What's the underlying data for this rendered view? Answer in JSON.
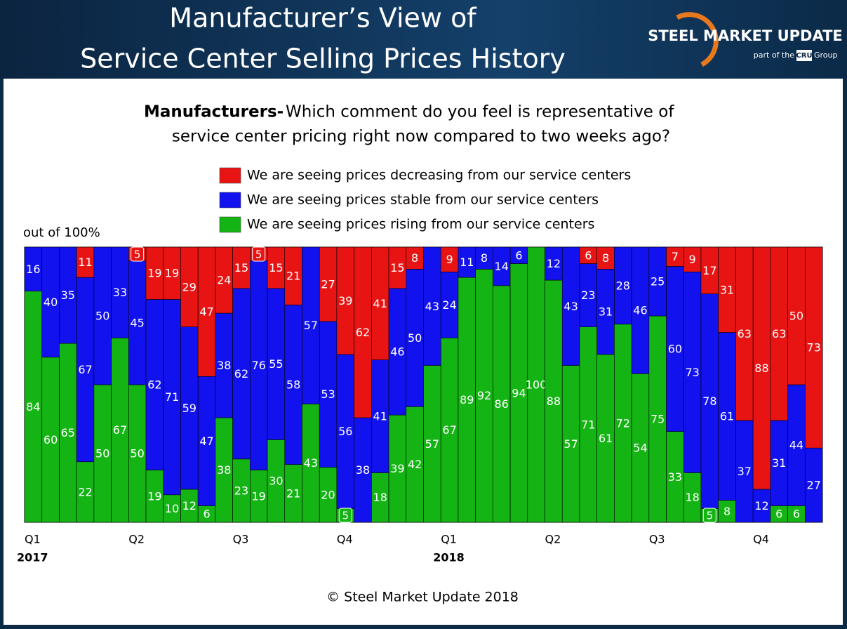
{
  "header": {
    "title_lines": [
      "Manufacturer’s View of",
      "Service Center Selling Prices History"
    ],
    "logo": {
      "brand": "STEEL MARKET UPDATE",
      "tagline": "part of the",
      "badge": "CRU",
      "suffix": "Group"
    }
  },
  "chart_data": {
    "type": "stacked_bar",
    "subtitle_bold": "Manufacturers-",
    "subtitle_lines": [
      "Which comment do you feel is representative of",
      "service center pricing right now compared to two weeks ago?"
    ],
    "unit_note": "out of 100%",
    "categories": [
      "Q1",
      null,
      null,
      null,
      null,
      null,
      "Q2",
      null,
      null,
      null,
      null,
      null,
      "Q3",
      null,
      null,
      null,
      null,
      null,
      "Q4",
      null,
      null,
      null,
      null,
      null,
      "Q1",
      null,
      null,
      null,
      null,
      null,
      "Q2",
      null,
      null,
      null,
      null,
      null,
      "Q3",
      null,
      null,
      null,
      null,
      null,
      "Q4",
      null,
      null,
      null
    ],
    "years": [
      "2017",
      null,
      null,
      null,
      null,
      null,
      null,
      null,
      null,
      null,
      null,
      null,
      null,
      null,
      null,
      null,
      null,
      null,
      null,
      null,
      null,
      null,
      null,
      null,
      "2018",
      null,
      null,
      null,
      null,
      null,
      null,
      null,
      null,
      null,
      null,
      null,
      null,
      null,
      null,
      null,
      null,
      null,
      null,
      null,
      null,
      null
    ],
    "ylim": [
      0,
      100
    ],
    "series": [
      {
        "name": "We are seeing prices decreasing from our service centers",
        "color": "#e81414",
        "values": [
          0,
          0,
          0,
          11,
          0,
          0,
          5,
          19,
          19,
          29,
          47,
          24,
          15,
          5,
          15,
          21,
          0,
          27,
          39,
          62,
          41,
          15,
          8,
          0,
          9,
          0,
          0,
          0,
          0,
          0,
          0,
          0,
          6,
          8,
          0,
          0,
          0,
          7,
          9,
          17,
          31,
          63,
          88,
          63,
          50,
          73
        ]
      },
      {
        "name": "We are seeing prices stable from our service centers",
        "color": "#1212ee",
        "values": [
          16,
          40,
          35,
          67,
          50,
          33,
          45,
          62,
          71,
          59,
          47,
          38,
          62,
          76,
          55,
          58,
          57,
          53,
          56,
          38,
          41,
          46,
          50,
          43,
          24,
          11,
          8,
          14,
          6,
          0,
          12,
          43,
          23,
          31,
          28,
          46,
          25,
          60,
          73,
          78,
          61,
          37,
          12,
          31,
          44,
          27
        ]
      },
      {
        "name": "We are seeing prices rising from our service centers",
        "color": "#14b414",
        "values": [
          84,
          60,
          65,
          22,
          50,
          67,
          50,
          19,
          10,
          12,
          6,
          38,
          23,
          19,
          30,
          21,
          43,
          20,
          5,
          0,
          18,
          39,
          42,
          57,
          67,
          89,
          92,
          86,
          94,
          100,
          88,
          57,
          71,
          61,
          72,
          54,
          75,
          33,
          18,
          5,
          8,
          0,
          0,
          6,
          6,
          0
        ]
      }
    ],
    "footer": "© Steel Market Update 2018"
  }
}
